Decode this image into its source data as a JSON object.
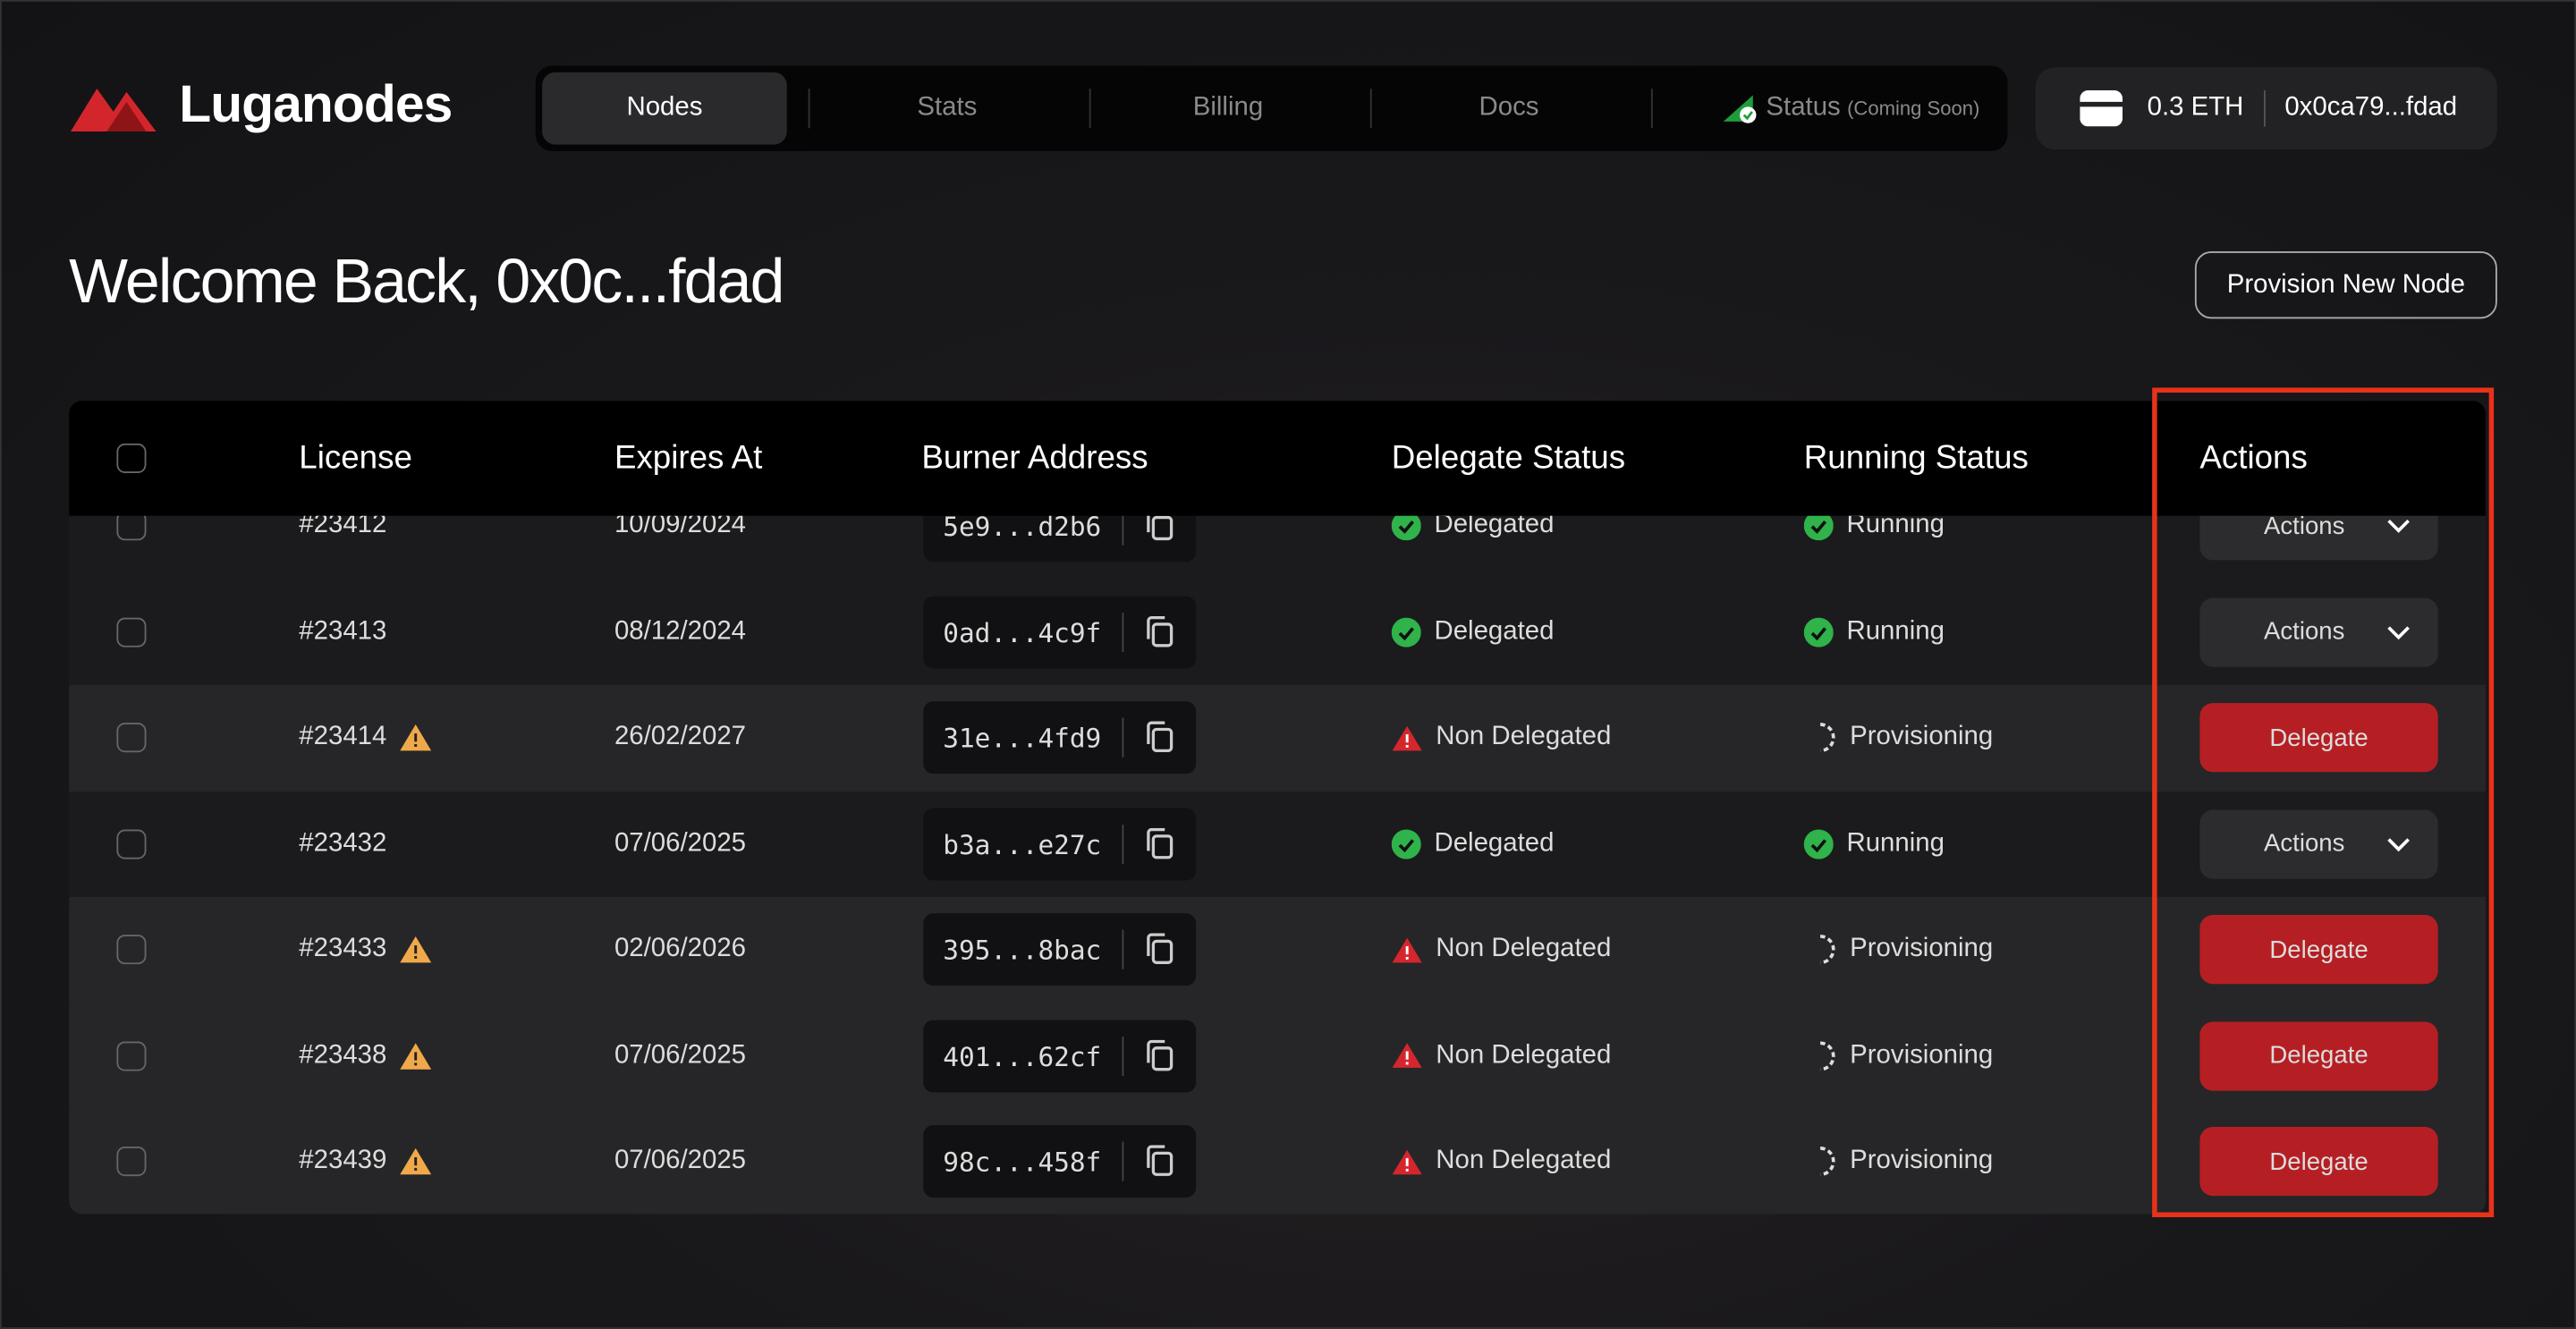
{
  "header": {
    "brand": "Luganodes",
    "nav": [
      "Nodes",
      "Stats",
      "Billing",
      "Docs"
    ],
    "status_tab": "Status",
    "status_note": "(Coming Soon)",
    "balance": "0.3 ETH",
    "address": "0x0ca79...fdad"
  },
  "welcome": "Welcome Back, 0x0c...fdad",
  "provision_button": "Provision New Node",
  "table": {
    "columns": [
      "License",
      "Expires At",
      "Burner Address",
      "Delegate Status",
      "Running Status",
      "Actions"
    ],
    "rows": [
      [
        "#23412",
        "10/09/2024",
        "5e9...d2b6",
        "Delegated",
        "Running",
        "Actions"
      ],
      [
        "#23413",
        "08/12/2024",
        "0ad...4c9f",
        "Delegated",
        "Running",
        "Actions"
      ],
      [
        "#23414",
        "26/02/2027",
        "31e...4fd9",
        "Non Delegated",
        "Provisioning",
        "Delegate"
      ],
      [
        "#23432",
        "07/06/2025",
        "b3a...e27c",
        "Delegated",
        "Running",
        "Actions"
      ],
      [
        "#23433",
        "02/06/2026",
        "395...8bac",
        "Non Delegated",
        "Provisioning",
        "Delegate"
      ],
      [
        "#23438",
        "07/06/2025",
        "401...62cf",
        "Non Delegated",
        "Provisioning",
        "Delegate"
      ],
      [
        "#23439",
        "07/06/2025",
        "98c...458f",
        "Non Delegated",
        "Provisioning",
        "Delegate"
      ]
    ]
  }
}
